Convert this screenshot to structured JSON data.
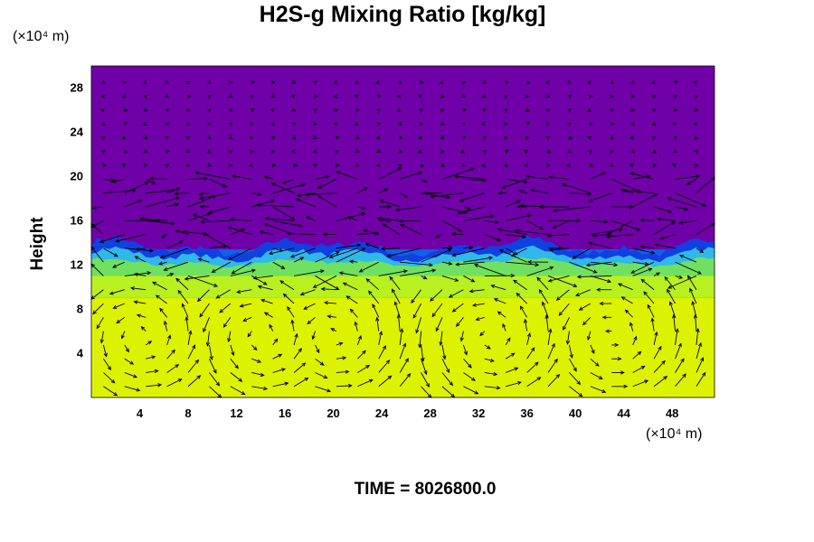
{
  "title": "H2S-g Mixing Ratio [kg/kg]",
  "y_unit": "(×10⁴ m)",
  "x_unit": "(×10⁴ m)",
  "ylabel": "Height",
  "time_label": "TIME = 8026800.0",
  "chart_data": {
    "type": "heatmap",
    "title": "H2S-g Mixing Ratio [kg/kg]",
    "xlabel": "",
    "ylabel": "Height",
    "x_unit": "(×10⁴ m)",
    "y_unit": "(×10⁴ m)",
    "xlim": [
      0,
      51.5
    ],
    "ylim": [
      0,
      30
    ],
    "x_ticks": [
      "4",
      "8",
      "12",
      "16",
      "20",
      "24",
      "28",
      "32",
      "36",
      "40",
      "44",
      "48"
    ],
    "y_ticks": [
      "4",
      "8",
      "12",
      "16",
      "20",
      "24",
      "28"
    ],
    "x_tick_values": [
      4,
      8,
      12,
      16,
      20,
      24,
      28,
      32,
      36,
      40,
      44,
      48
    ],
    "y_tick_values": [
      4,
      8,
      12,
      16,
      20,
      24,
      28
    ],
    "field_layers": [
      {
        "y_bottom": 0,
        "y_top": 9,
        "color": "#ddf200"
      },
      {
        "y_bottom": 9,
        "y_top": 11,
        "color": "#b8f020"
      },
      {
        "y_bottom": 11,
        "y_top": 12,
        "color": "#7ee04a"
      },
      {
        "y_bottom": 12,
        "y_top": 12.7,
        "color": "#2ec8c8"
      },
      {
        "y_bottom": 12.7,
        "y_top": 13.4,
        "color": "#1060e8"
      },
      {
        "y_bottom": 13.4,
        "y_top": 30,
        "color": "#7000a8"
      }
    ],
    "overlay": "wind-vectors",
    "grid": false,
    "time": "TIME = 8026800.0"
  }
}
